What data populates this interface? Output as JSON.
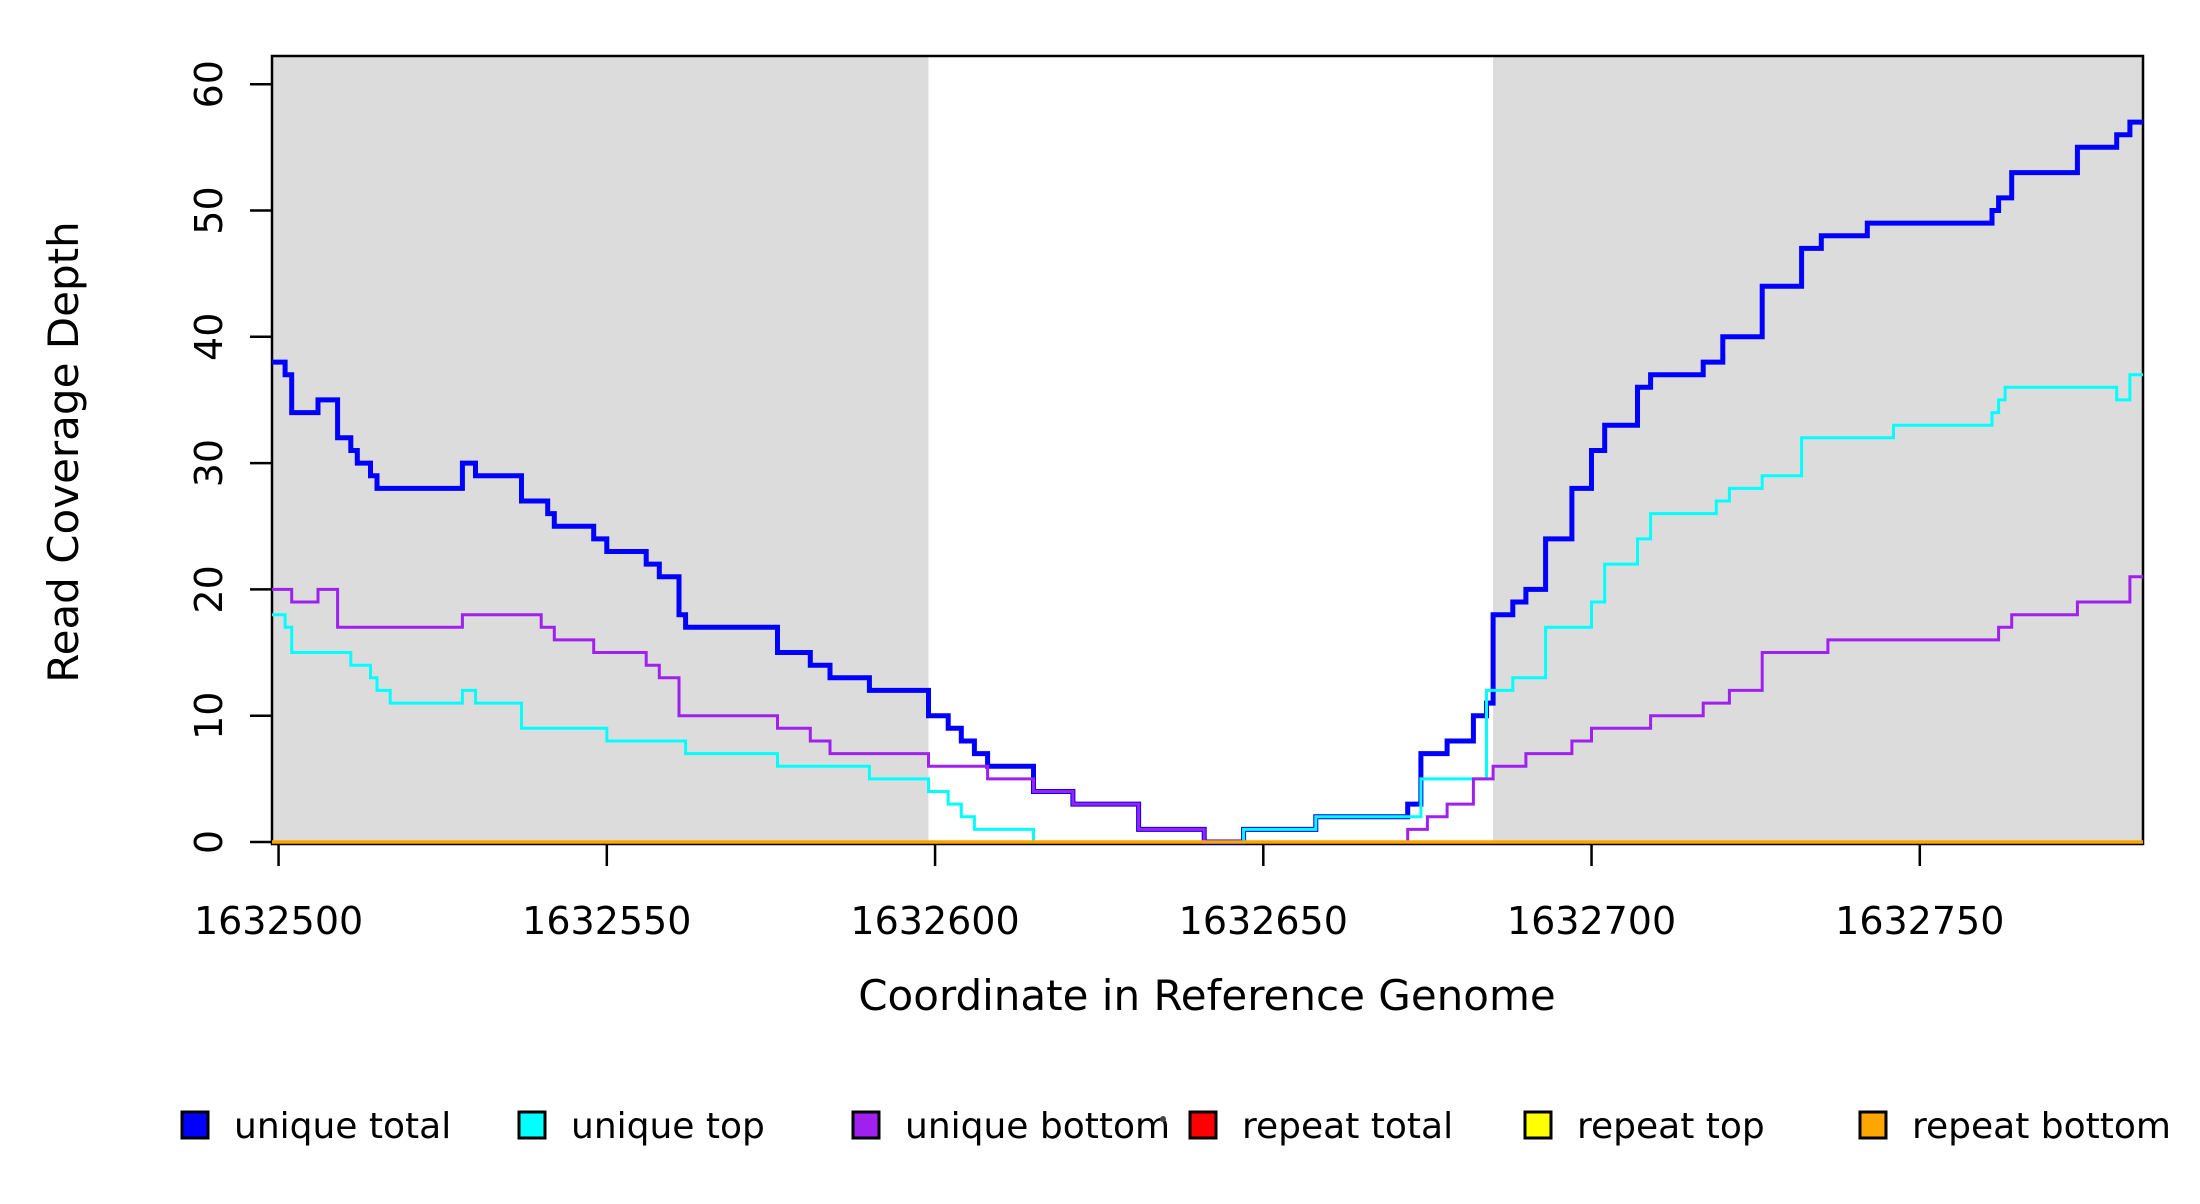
{
  "figure": {
    "y_axis_title": "Read Coverage Depth",
    "x_axis_title": "Coordinate in Reference Genome"
  },
  "chart_data": {
    "type": "line",
    "subtype": "step",
    "title": "",
    "xlabel": "Coordinate in Reference Genome",
    "ylabel": "Read Coverage Depth",
    "x_range": [
      1632499,
      1632784
    ],
    "y_range": [
      0,
      62
    ],
    "grid": false,
    "legend_position": "bottom",
    "shade_color": "#DCDCDC",
    "shaded_regions": [
      [
        1632499,
        1632599
      ],
      [
        1632685,
        1632784
      ]
    ],
    "x_ticks": [
      {
        "v": 1632500,
        "label": "1632500"
      },
      {
        "v": 1632550,
        "label": "1632550"
      },
      {
        "v": 1632600,
        "label": "1632600"
      },
      {
        "v": 1632650,
        "label": "1632650"
      },
      {
        "v": 1632700,
        "label": "1632700"
      },
      {
        "v": 1632750,
        "label": "1632750"
      }
    ],
    "y_ticks": [
      {
        "v": 0,
        "label": "0"
      },
      {
        "v": 10,
        "label": "10"
      },
      {
        "v": 20,
        "label": "20"
      },
      {
        "v": 30,
        "label": "30"
      },
      {
        "v": 40,
        "label": "40"
      },
      {
        "v": 50,
        "label": "50"
      },
      {
        "v": 60,
        "label": "60"
      }
    ],
    "series": [
      {
        "name": "unique total",
        "color": "#0000FF",
        "width": 5,
        "points": [
          [
            1632499,
            38
          ],
          [
            1632501,
            37
          ],
          [
            1632502,
            34
          ],
          [
            1632506,
            35
          ],
          [
            1632509,
            32
          ],
          [
            1632511,
            31
          ],
          [
            1632512,
            30
          ],
          [
            1632514,
            29
          ],
          [
            1632515,
            28
          ],
          [
            1632528,
            30
          ],
          [
            1632530,
            29
          ],
          [
            1632537,
            27
          ],
          [
            1632541,
            26
          ],
          [
            1632542,
            25
          ],
          [
            1632548,
            24
          ],
          [
            1632550,
            23
          ],
          [
            1632556,
            22
          ],
          [
            1632558,
            21
          ],
          [
            1632561,
            18
          ],
          [
            1632562,
            17
          ],
          [
            1632576,
            15
          ],
          [
            1632581,
            14
          ],
          [
            1632584,
            13
          ],
          [
            1632590,
            12
          ],
          [
            1632599,
            10
          ],
          [
            1632602,
            9
          ],
          [
            1632604,
            8
          ],
          [
            1632606,
            7
          ],
          [
            1632608,
            6
          ],
          [
            1632615,
            4
          ],
          [
            1632621,
            3
          ],
          [
            1632631,
            1
          ],
          [
            1632641,
            0
          ],
          [
            1632647,
            1
          ],
          [
            1632658,
            2
          ],
          [
            1632672,
            3
          ],
          [
            1632674,
            7
          ],
          [
            1632678,
            8
          ],
          [
            1632682,
            10
          ],
          [
            1632684,
            11
          ],
          [
            1632685,
            18
          ],
          [
            1632688,
            19
          ],
          [
            1632690,
            20
          ],
          [
            1632693,
            24
          ],
          [
            1632697,
            28
          ],
          [
            1632700,
            31
          ],
          [
            1632702,
            33
          ],
          [
            1632707,
            36
          ],
          [
            1632709,
            37
          ],
          [
            1632717,
            38
          ],
          [
            1632720,
            40
          ],
          [
            1632726,
            44
          ],
          [
            1632732,
            47
          ],
          [
            1632735,
            48
          ],
          [
            1632742,
            49
          ],
          [
            1632761,
            50
          ],
          [
            1632762,
            51
          ],
          [
            1632764,
            53
          ],
          [
            1632774,
            55
          ],
          [
            1632780,
            56
          ],
          [
            1632782,
            57
          ]
        ]
      },
      {
        "name": "unique top",
        "color": "#00FFFF",
        "width": 3,
        "points": [
          [
            1632499,
            18
          ],
          [
            1632501,
            17
          ],
          [
            1632502,
            15
          ],
          [
            1632511,
            14
          ],
          [
            1632514,
            13
          ],
          [
            1632515,
            12
          ],
          [
            1632517,
            11
          ],
          [
            1632528,
            12
          ],
          [
            1632530,
            11
          ],
          [
            1632537,
            9
          ],
          [
            1632550,
            8
          ],
          [
            1632562,
            7
          ],
          [
            1632576,
            6
          ],
          [
            1632590,
            5
          ],
          [
            1632599,
            4
          ],
          [
            1632602,
            3
          ],
          [
            1632604,
            2
          ],
          [
            1632606,
            1
          ],
          [
            1632615,
            0
          ],
          [
            1632647,
            1
          ],
          [
            1632658,
            2
          ],
          [
            1632674,
            5
          ],
          [
            1632684,
            12
          ],
          [
            1632688,
            13
          ],
          [
            1632693,
            17
          ],
          [
            1632700,
            19
          ],
          [
            1632702,
            22
          ],
          [
            1632707,
            24
          ],
          [
            1632709,
            26
          ],
          [
            1632719,
            27
          ],
          [
            1632721,
            28
          ],
          [
            1632726,
            29
          ],
          [
            1632732,
            32
          ],
          [
            1632746,
            33
          ],
          [
            1632761,
            34
          ],
          [
            1632762,
            35
          ],
          [
            1632763,
            36
          ],
          [
            1632780,
            35
          ],
          [
            1632782,
            37
          ]
        ]
      },
      {
        "name": "unique bottom",
        "color": "#A020F0",
        "width": 3,
        "points": [
          [
            1632499,
            20
          ],
          [
            1632502,
            19
          ],
          [
            1632506,
            20
          ],
          [
            1632509,
            17
          ],
          [
            1632528,
            18
          ],
          [
            1632540,
            17
          ],
          [
            1632542,
            16
          ],
          [
            1632548,
            15
          ],
          [
            1632556,
            14
          ],
          [
            1632558,
            13
          ],
          [
            1632561,
            10
          ],
          [
            1632576,
            9
          ],
          [
            1632581,
            8
          ],
          [
            1632584,
            7
          ],
          [
            1632599,
            6
          ],
          [
            1632608,
            5
          ],
          [
            1632615,
            4
          ],
          [
            1632621,
            3
          ],
          [
            1632631,
            1
          ],
          [
            1632641,
            0
          ],
          [
            1632672,
            1
          ],
          [
            1632675,
            2
          ],
          [
            1632678,
            3
          ],
          [
            1632682,
            5
          ],
          [
            1632685,
            6
          ],
          [
            1632690,
            7
          ],
          [
            1632697,
            8
          ],
          [
            1632700,
            9
          ],
          [
            1632709,
            10
          ],
          [
            1632717,
            11
          ],
          [
            1632721,
            12
          ],
          [
            1632726,
            15
          ],
          [
            1632736,
            16
          ],
          [
            1632762,
            17
          ],
          [
            1632764,
            18
          ],
          [
            1632774,
            19
          ],
          [
            1632782,
            21
          ]
        ]
      },
      {
        "name": "repeat total",
        "color": "#FF0000",
        "width": 3,
        "points": [
          [
            1632499,
            0
          ]
        ]
      },
      {
        "name": "repeat top",
        "color": "#FFFF00",
        "width": 3,
        "points": [
          [
            1632499,
            0
          ]
        ]
      },
      {
        "name": "repeat bottom",
        "color": "#FFA500",
        "width": 3.5,
        "points": [
          [
            1632499,
            0
          ]
        ]
      }
    ],
    "legend": [
      {
        "label": "unique total",
        "color": "#0000FF"
      },
      {
        "label": "unique top",
        "color": "#00FFFF"
      },
      {
        "label": "unique bottom",
        "color": "#A020F0"
      },
      {
        "label": "repeat total",
        "color": "#FF0000"
      },
      {
        "label": "repeat top",
        "color": "#FFFF00"
      },
      {
        "label": "repeat bottom",
        "color": "#FFA500"
      }
    ]
  }
}
